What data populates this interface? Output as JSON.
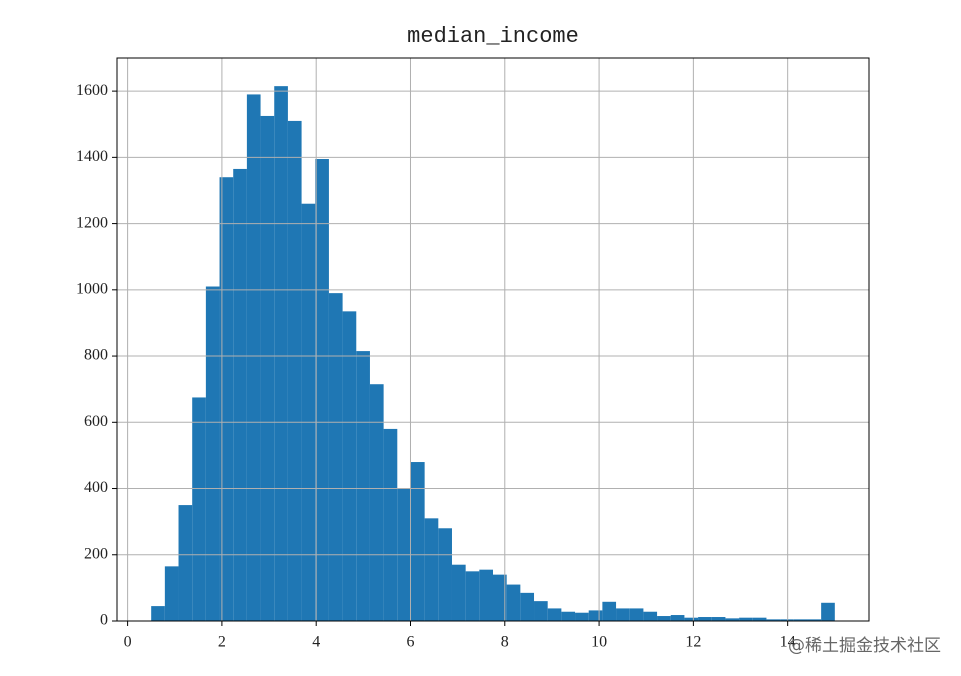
{
  "chart_data": {
    "type": "histogram",
    "title": "median_income",
    "bins": [
      0.5,
      0.79,
      1.08,
      1.37,
      1.66,
      1.95,
      2.24,
      2.53,
      2.82,
      3.11,
      3.4,
      3.69,
      3.98,
      4.27,
      4.56,
      4.85,
      5.14,
      5.43,
      5.72,
      6.01,
      6.3,
      6.59,
      6.88,
      7.17,
      7.46,
      7.75,
      8.04,
      8.33,
      8.62,
      8.91,
      9.2,
      9.49,
      9.78,
      10.07,
      10.36,
      10.65,
      10.94,
      11.23,
      11.52,
      11.81,
      12.1,
      12.39,
      12.68,
      12.97,
      13.26,
      13.55,
      13.84,
      14.13,
      14.42,
      14.71,
      15.0
    ],
    "values": [
      45,
      165,
      350,
      675,
      1010,
      1340,
      1365,
      1590,
      1525,
      1615,
      1510,
      1260,
      1395,
      990,
      935,
      815,
      715,
      580,
      400,
      480,
      310,
      280,
      170,
      150,
      155,
      140,
      110,
      85,
      60,
      38,
      28,
      25,
      32,
      58,
      38,
      38,
      28,
      15,
      18,
      10,
      12,
      12,
      8,
      10,
      10,
      5,
      5,
      5,
      5,
      55
    ],
    "color": "#1f77b4",
    "xlim": [
      -0.225,
      15.725
    ],
    "ylim": [
      0,
      1700
    ],
    "xticks": [
      0,
      2,
      4,
      6,
      8,
      10,
      12,
      14
    ],
    "yticks": [
      0,
      200,
      400,
      600,
      800,
      1000,
      1200,
      1400,
      1600
    ],
    "grid": true
  },
  "watermark": "@稀土掘金技术社区"
}
